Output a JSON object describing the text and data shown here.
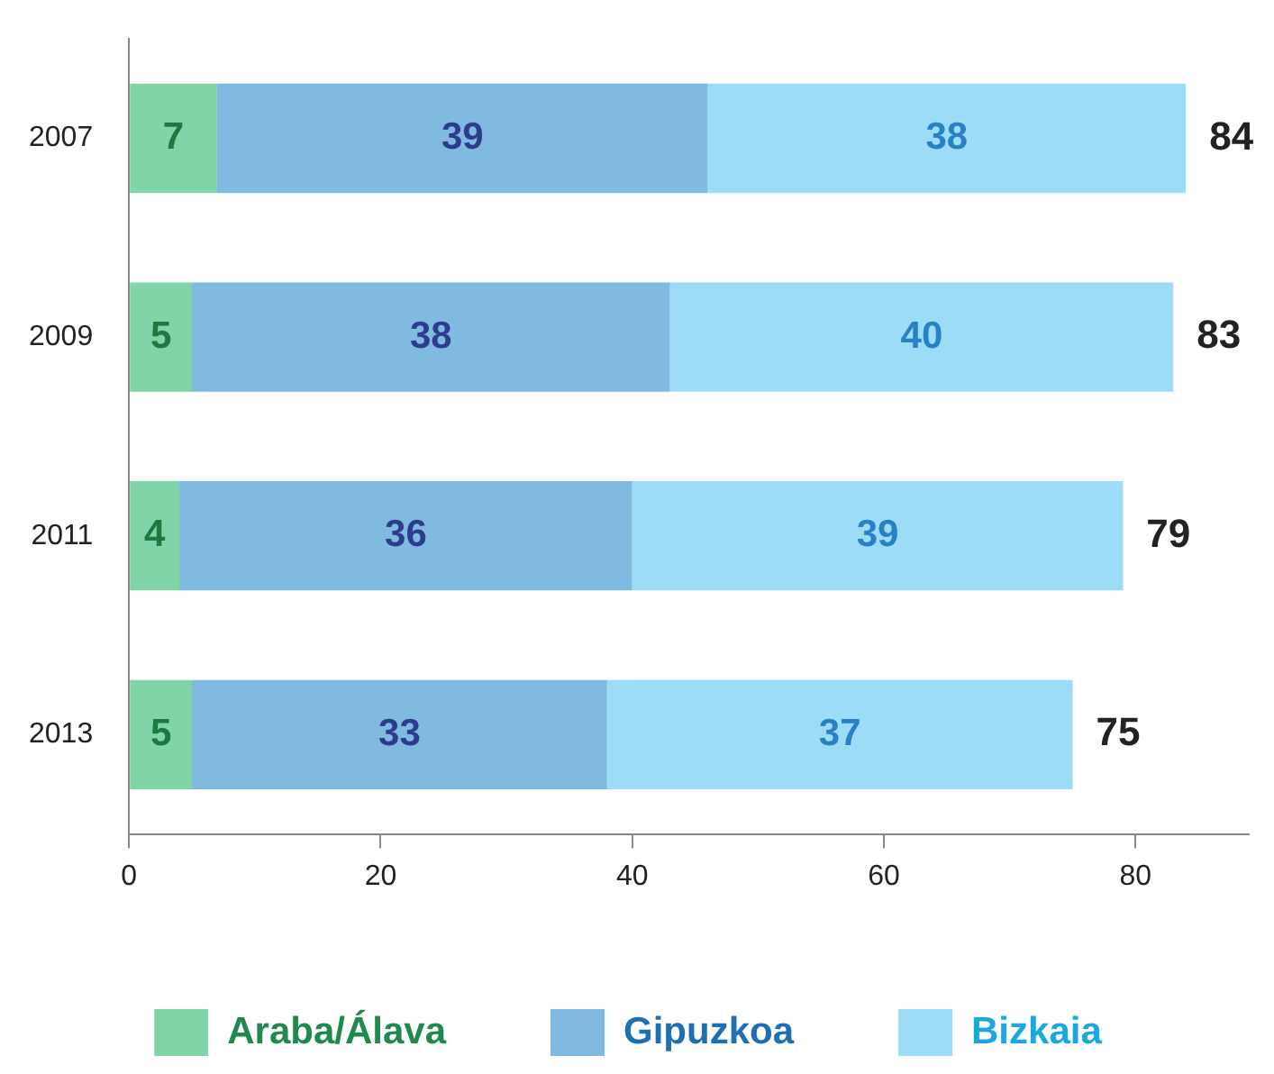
{
  "chart_data": {
    "type": "bar",
    "orientation": "horizontal",
    "stacked": true,
    "categories": [
      "2007",
      "2009",
      "2011",
      "2013"
    ],
    "series": [
      {
        "name": "Araba/Álava",
        "color": "#80d4a8",
        "values": [
          7,
          5,
          4,
          5
        ]
      },
      {
        "name": "Gipuzkoa",
        "color": "#80bae0",
        "values": [
          39,
          38,
          36,
          33
        ]
      },
      {
        "name": "Bizkaia",
        "color": "#9ddcf6",
        "values": [
          38,
          40,
          39,
          37
        ]
      }
    ],
    "xlim": [
      0,
      89
    ],
    "xticks": [
      0,
      20,
      40,
      60,
      80
    ],
    "data_labels": true,
    "totals": [
      "84",
      "83",
      "79",
      "75"
    ],
    "legend": "bottom"
  }
}
